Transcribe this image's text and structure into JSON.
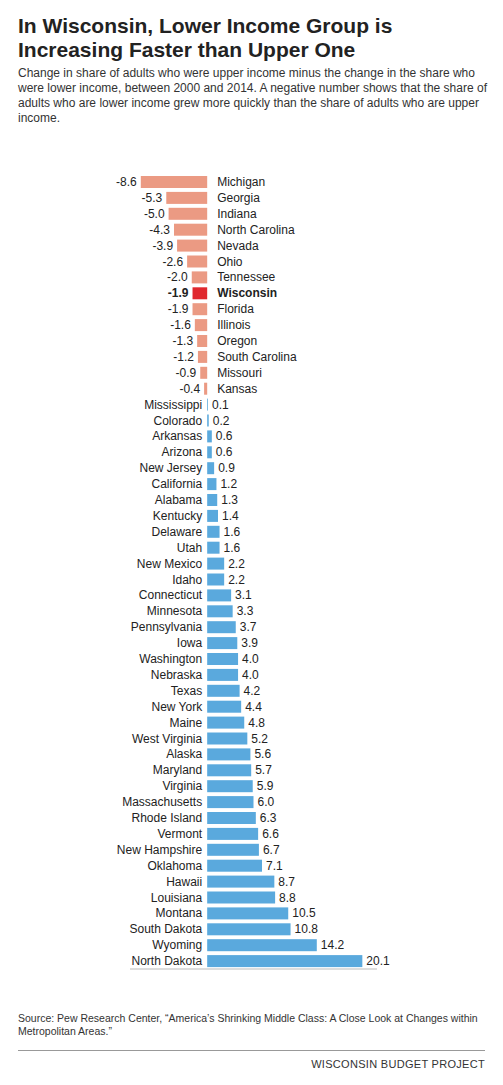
{
  "chart_data": {
    "type": "bar",
    "orientation": "horizontal",
    "title": "In Wisconsin, Lower Income Group is Increasing Faster than Upper One",
    "subtitle": "Change in share of adults who were upper income minus the change in the share who were lower income, between 2000 and 2014. A negative number shows that the share of adults who are lower income grew more quickly than the share of adults who are upper income.",
    "source": "Source: Pew Research Center, “America’s Shrinking Middle Class: A Close Look at Changes within Metropolitan Areas.”",
    "credit": "WISCONSIN BUDGET PROJECT",
    "categories": [
      "Michigan",
      "Georgia",
      "Indiana",
      "North Carolina",
      "Nevada",
      "Ohio",
      "Tennessee",
      "Wisconsin",
      "Florida",
      "Illinois",
      "Oregon",
      "South Carolina",
      "Missouri",
      "Kansas",
      "Mississippi",
      "Colorado",
      "Arkansas",
      "Arizona",
      "New Jersey",
      "California",
      "Alabama",
      "Kentucky",
      "Delaware",
      "Utah",
      "New Mexico",
      "Idaho",
      "Connecticut",
      "Minnesota",
      "Pennsylvania",
      "Iowa",
      "Washington",
      "Nebraska",
      "Texas",
      "New York",
      "Maine",
      "West Virginia",
      "Alaska",
      "Maryland",
      "Virginia",
      "Massachusetts",
      "Rhode Island",
      "Vermont",
      "New Hampshire",
      "Oklahoma",
      "Hawaii",
      "Louisiana",
      "Montana",
      "South Dakota",
      "Wyoming",
      "North Dakota"
    ],
    "values": [
      -8.6,
      -5.3,
      -5.0,
      -4.3,
      -3.9,
      -2.6,
      -2.0,
      -1.9,
      -1.9,
      -1.6,
      -1.3,
      -1.2,
      -0.9,
      -0.4,
      0.1,
      0.2,
      0.6,
      0.6,
      0.9,
      1.2,
      1.3,
      1.4,
      1.6,
      1.6,
      2.2,
      2.2,
      3.1,
      3.3,
      3.7,
      3.9,
      4.0,
      4.0,
      4.2,
      4.4,
      4.8,
      5.2,
      5.6,
      5.7,
      5.9,
      6.0,
      6.3,
      6.6,
      6.7,
      7.1,
      8.7,
      8.8,
      10.5,
      10.8,
      14.2,
      20.1
    ],
    "value_labels": [
      "-8.6",
      "-5.3",
      "-5.0",
      "-4.3",
      "-3.9",
      "-2.6",
      "-2.0",
      "-1.9",
      "-1.9",
      "-1.6",
      "-1.3",
      "-1.2",
      "-0.9",
      "-0.4",
      "0.1",
      "0.2",
      "0.6",
      "0.6",
      "0.9",
      "1.2",
      "1.3",
      "1.4",
      "1.6",
      "1.6",
      "2.2",
      "2.2",
      "3.1",
      "3.3",
      "3.7",
      "3.9",
      "4.0",
      "4.0",
      "4.2",
      "4.4",
      "4.8",
      "5.2",
      "5.6",
      "5.7",
      "5.9",
      "6.0",
      "6.3",
      "6.6",
      "6.7",
      "7.1",
      "8.7",
      "8.8",
      "10.5",
      "10.8",
      "14.2",
      "20.1"
    ],
    "colors": [
      "#eb9a83",
      "#eb9a83",
      "#eb9a83",
      "#eb9a83",
      "#eb9a83",
      "#eb9a83",
      "#eb9a83",
      "#e0282e",
      "#eb9a83",
      "#eb9a83",
      "#eb9a83",
      "#eb9a83",
      "#eb9a83",
      "#eb9a83",
      "#5aa9dd",
      "#5aa9dd",
      "#5aa9dd",
      "#5aa9dd",
      "#5aa9dd",
      "#5aa9dd",
      "#5aa9dd",
      "#5aa9dd",
      "#5aa9dd",
      "#5aa9dd",
      "#5aa9dd",
      "#5aa9dd",
      "#5aa9dd",
      "#5aa9dd",
      "#5aa9dd",
      "#5aa9dd",
      "#5aa9dd",
      "#5aa9dd",
      "#5aa9dd",
      "#5aa9dd",
      "#5aa9dd",
      "#5aa9dd",
      "#5aa9dd",
      "#5aa9dd",
      "#5aa9dd",
      "#5aa9dd",
      "#5aa9dd",
      "#5aa9dd",
      "#5aa9dd",
      "#5aa9dd",
      "#5aa9dd",
      "#5aa9dd",
      "#5aa9dd",
      "#5aa9dd",
      "#5aa9dd",
      "#5aa9dd"
    ],
    "xlim": [
      -10,
      22
    ],
    "data_labels": true,
    "tick_labels": false,
    "grid": false
  }
}
